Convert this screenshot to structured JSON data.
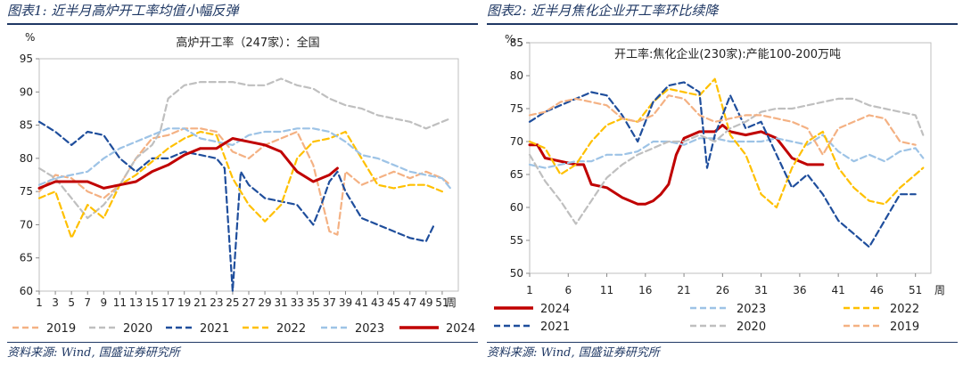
{
  "panels": [
    {
      "title": "图表1:  近半月高炉开工率均值小幅反弹",
      "source": "资料来源:  Wind,  国盛证券研究所"
    },
    {
      "title": "图表2:  近半月焦化企业开工率环比续降",
      "source": "资料来源:  Wind,  国盛证券研究所"
    }
  ],
  "colors": {
    "2019": "#f4b183",
    "2020": "#bfbfbf",
    "2021": "#1f4e9c",
    "2022": "#ffc000",
    "2023": "#9dc3e6",
    "2024": "#c00000",
    "title": "#1f3864"
  },
  "chart_data": [
    {
      "type": "line",
      "title": "高炉开工率（247家）：全国",
      "ylabel": "%",
      "xunit": "周",
      "ylim": [
        60,
        95
      ],
      "yticks": [
        60,
        65,
        70,
        75,
        80,
        85,
        90,
        95
      ],
      "xticks": [
        1,
        3,
        5,
        7,
        9,
        11,
        13,
        15,
        17,
        19,
        21,
        23,
        25,
        27,
        29,
        31,
        33,
        35,
        37,
        39,
        41,
        43,
        45,
        47,
        49,
        51
      ],
      "legend_position": "bottom",
      "series": [
        {
          "name": "2019",
          "style": "dashed",
          "x": [
            1,
            3,
            5,
            7,
            9,
            11,
            13,
            15,
            17,
            19,
            21,
            23,
            25,
            27,
            29,
            31,
            33,
            35,
            37,
            38,
            39,
            41,
            43,
            45,
            47,
            49,
            51,
            52
          ],
          "values": [
            75,
            77.5,
            77,
            75,
            74,
            76,
            80,
            83,
            83.5,
            84.5,
            84.5,
            84,
            81,
            80,
            82,
            83,
            84,
            79,
            69,
            68.5,
            78,
            76,
            77,
            78,
            77,
            78,
            77,
            76
          ]
        },
        {
          "name": "2020",
          "style": "dashed",
          "x": [
            1,
            3,
            5,
            7,
            9,
            11,
            13,
            15,
            16,
            17,
            19,
            21,
            23,
            25,
            27,
            29,
            31,
            33,
            35,
            37,
            39,
            41,
            43,
            45,
            47,
            49,
            51,
            52
          ],
          "values": [
            78.5,
            77,
            74,
            71,
            73,
            76,
            80,
            82,
            84,
            89,
            91,
            91.5,
            91.5,
            91.5,
            91,
            91,
            92,
            91,
            90.5,
            89,
            88,
            87.5,
            86.5,
            86,
            85.5,
            84.5,
            85.5,
            86
          ]
        },
        {
          "name": "2021",
          "style": "dashed",
          "x": [
            1,
            3,
            5,
            7,
            9,
            11,
            13,
            15,
            17,
            19,
            21,
            23,
            24,
            25,
            26,
            27,
            29,
            31,
            33,
            35,
            36,
            37,
            38,
            39,
            41,
            43,
            45,
            47,
            49,
            50
          ],
          "values": [
            85.5,
            84,
            82,
            84,
            83.5,
            80,
            78,
            80,
            80,
            81,
            80.5,
            80,
            78.5,
            60,
            78,
            76,
            74,
            73.5,
            73,
            70,
            73,
            76.5,
            78,
            75,
            71,
            70,
            69,
            68,
            67.5,
            70
          ]
        },
        {
          "name": "2022",
          "style": "dashed",
          "x": [
            1,
            3,
            5,
            7,
            9,
            11,
            13,
            15,
            17,
            19,
            21,
            23,
            25,
            27,
            29,
            31,
            33,
            35,
            37,
            39,
            41,
            43,
            45,
            47,
            49,
            51
          ],
          "values": [
            74,
            75,
            68,
            73,
            71,
            76,
            77.5,
            79.5,
            81.5,
            83,
            84,
            83.5,
            77,
            73,
            70.5,
            73,
            80,
            82.5,
            83,
            84,
            80,
            76,
            75.5,
            76,
            76,
            75
          ]
        },
        {
          "name": "2023",
          "style": "dashed",
          "x": [
            1,
            3,
            5,
            7,
            9,
            11,
            13,
            15,
            17,
            19,
            21,
            23,
            25,
            27,
            29,
            31,
            33,
            35,
            37,
            39,
            41,
            43,
            45,
            47,
            49,
            51,
            52
          ],
          "values": [
            76,
            77,
            77.5,
            78,
            80,
            81.5,
            82.5,
            83.5,
            84.5,
            84.5,
            83,
            82.5,
            82,
            83.5,
            84,
            84,
            84.5,
            84.5,
            84,
            82.5,
            80.5,
            80,
            79,
            78,
            77.5,
            77,
            75.5
          ]
        },
        {
          "name": "2024",
          "style": "solid",
          "x": [
            1,
            3,
            5,
            7,
            9,
            11,
            13,
            15,
            17,
            19,
            21,
            23,
            25,
            27,
            29,
            31,
            33,
            35,
            37,
            38
          ],
          "values": [
            75.5,
            76.5,
            76.5,
            76.5,
            75.5,
            76,
            76.5,
            78,
            79,
            80.5,
            81.5,
            81.5,
            83,
            82.5,
            82,
            81,
            78,
            76.5,
            77.5,
            78.5
          ]
        }
      ]
    },
    {
      "type": "line",
      "title": "开工率:焦化企业(230家):产能100-200万吨",
      "ylabel": "%",
      "xunit": "周",
      "ylim": [
        50,
        85
      ],
      "yticks": [
        50,
        55,
        60,
        65,
        70,
        75,
        80,
        85
      ],
      "xticks": [
        1,
        6,
        11,
        16,
        21,
        26,
        31,
        36,
        41,
        46,
        51
      ],
      "legend_position": "bottom",
      "series": [
        {
          "name": "2024",
          "style": "solid",
          "x": [
            1,
            2,
            3,
            5,
            7,
            8,
            9,
            11,
            13,
            15,
            16,
            17,
            18,
            19,
            20,
            21,
            22,
            23,
            24,
            25,
            26,
            27,
            29,
            31,
            33,
            34,
            35,
            36,
            37,
            38,
            39
          ],
          "values": [
            69.5,
            69.5,
            67.5,
            67,
            66.5,
            66.5,
            63.5,
            63,
            61.5,
            60.5,
            60.5,
            61,
            62,
            63.5,
            68,
            70.5,
            71,
            71.5,
            71.5,
            71.5,
            72.5,
            71.5,
            71,
            71.5,
            70.5,
            69,
            67.5,
            67,
            66.5,
            66.5,
            66.5
          ]
        },
        {
          "name": "2023",
          "style": "dashed",
          "x": [
            1,
            3,
            5,
            7,
            9,
            11,
            13,
            15,
            17,
            19,
            21,
            23,
            25,
            27,
            29,
            31,
            33,
            35,
            37,
            39,
            41,
            43,
            45,
            47,
            49,
            51,
            52
          ],
          "values": [
            66.5,
            66,
            66.5,
            67,
            67,
            68,
            68,
            68.5,
            70,
            70,
            69.5,
            70.5,
            70.5,
            70,
            70,
            70,
            70.5,
            70,
            69.5,
            71,
            68.5,
            67,
            68,
            67,
            68.5,
            69,
            67.5
          ]
        },
        {
          "name": "2022",
          "style": "dashed",
          "x": [
            1,
            3,
            5,
            7,
            9,
            11,
            13,
            15,
            17,
            19,
            21,
            23,
            25,
            27,
            29,
            31,
            33,
            35,
            37,
            39,
            41,
            43,
            45,
            47,
            49,
            51,
            52
          ],
          "values": [
            70,
            69,
            65,
            66.5,
            70,
            72.5,
            73.5,
            73,
            76,
            78,
            77.5,
            77,
            79.5,
            71,
            68,
            62,
            60,
            66,
            70,
            71.5,
            66,
            63,
            61,
            60.5,
            63,
            65,
            66
          ]
        },
        {
          "name": "2021",
          "style": "dashed",
          "x": [
            1,
            3,
            5,
            7,
            9,
            11,
            13,
            15,
            17,
            19,
            21,
            23,
            24,
            25,
            27,
            29,
            31,
            33,
            35,
            37,
            39,
            41,
            43,
            45,
            47,
            49,
            51
          ],
          "values": [
            73,
            74.5,
            75.5,
            76.5,
            77.5,
            77,
            74,
            70,
            76,
            78.5,
            79,
            77.5,
            66,
            71,
            77,
            72,
            73,
            68,
            63,
            65,
            62,
            58,
            56,
            54,
            58,
            62,
            62
          ]
        },
        {
          "name": "2020",
          "style": "dashed",
          "x": [
            1,
            3,
            5,
            7,
            9,
            11,
            13,
            15,
            17,
            19,
            21,
            23,
            25,
            27,
            29,
            31,
            33,
            35,
            37,
            39,
            41,
            43,
            45,
            47,
            49,
            51,
            52
          ],
          "values": [
            68,
            64,
            61,
            57.5,
            61,
            64.5,
            66.5,
            68,
            69,
            70,
            70,
            71,
            70,
            72,
            73,
            74.5,
            75,
            75,
            75.5,
            76,
            76.5,
            76.5,
            75.5,
            75,
            74.5,
            74,
            71
          ]
        },
        {
          "name": "2019",
          "style": "dashed",
          "x": [
            1,
            3,
            5,
            7,
            9,
            11,
            13,
            15,
            17,
            19,
            21,
            23,
            25,
            27,
            29,
            31,
            33,
            35,
            37,
            39,
            41,
            43,
            45,
            47,
            49,
            51
          ],
          "values": [
            74,
            74.5,
            76,
            76.5,
            76,
            75.5,
            73.5,
            73,
            74,
            77,
            76.5,
            74,
            73,
            73.5,
            74,
            74,
            73.5,
            73,
            72,
            68,
            72,
            73,
            74,
            73.5,
            70,
            69.5
          ]
        }
      ]
    }
  ]
}
